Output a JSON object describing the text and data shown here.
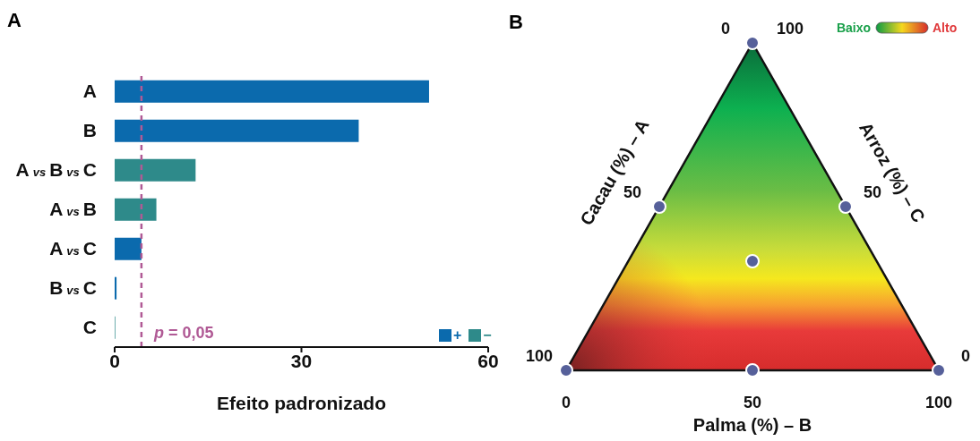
{
  "chart_data": [
    {
      "type": "bar",
      "title": "A",
      "orientation": "horizontal",
      "stacked": true,
      "categories": [
        "A",
        "B",
        "A vs B vs C",
        "A vs B",
        "A vs C",
        "B vs C",
        "C"
      ],
      "series": [
        {
          "name": "+",
          "color": "#0b6aad",
          "values": [
            50.5,
            39.2,
            null,
            null,
            4.3,
            0.3,
            null
          ]
        },
        {
          "name": "−",
          "color": "#2e8a8a",
          "values": [
            null,
            null,
            13.0,
            6.7,
            null,
            null,
            0.1
          ]
        }
      ],
      "xlim": [
        0,
        60
      ],
      "xticks": [
        0,
        30,
        60
      ],
      "xlabel": "Efeito padronizado",
      "ref_lines": [
        {
          "axis": "x",
          "value": 4.3,
          "color": "#b05a95",
          "line_style": "dashed"
        }
      ],
      "annotations": [
        {
          "text": "p = 0,05",
          "x": 4.3,
          "y": "C"
        }
      ],
      "legend": "bottom right"
    },
    {
      "type": "other",
      "title": "B",
      "xlabel": "Palma (%) – B",
      "ylabel": "Cacau (%) – A",
      "y2label": "Arroz (%) – C",
      "annotations": [
        "0",
        "100",
        "50",
        "50",
        "100",
        "0",
        "0",
        "50",
        "100",
        "Baixo",
        "Alto"
      ]
    }
  ]
}
